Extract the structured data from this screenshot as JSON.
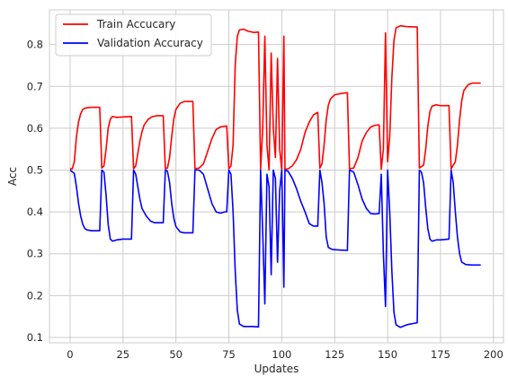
{
  "chart_data": {
    "type": "line",
    "xlabel": "Updates",
    "ylabel": "Acc",
    "xlim": [
      -9.75,
      204.75
    ],
    "ylim": [
      0.087,
      0.883
    ],
    "xticks": [
      0,
      25,
      50,
      75,
      100,
      125,
      150,
      175,
      200
    ],
    "yticks": [
      0.1,
      0.2,
      0.3,
      0.4,
      0.5,
      0.6,
      0.7,
      0.8
    ],
    "grid": true,
    "legend_position": "top-left",
    "series": [
      {
        "name": "Train Accucary",
        "color": "#ff0000",
        "points": [
          [
            0,
            0.503
          ],
          [
            1,
            0.503
          ],
          [
            2,
            0.52
          ],
          [
            3,
            0.58
          ],
          [
            4,
            0.615
          ],
          [
            5,
            0.635
          ],
          [
            6,
            0.645
          ],
          [
            7,
            0.648
          ],
          [
            8,
            0.649
          ],
          [
            10,
            0.65
          ],
          [
            14,
            0.65
          ],
          [
            15,
            0.505
          ],
          [
            16,
            0.51
          ],
          [
            17,
            0.55
          ],
          [
            18,
            0.6
          ],
          [
            19,
            0.622
          ],
          [
            20,
            0.628
          ],
          [
            22,
            0.626
          ],
          [
            25,
            0.627
          ],
          [
            29,
            0.628
          ],
          [
            30,
            0.503
          ],
          [
            31,
            0.51
          ],
          [
            32,
            0.54
          ],
          [
            33,
            0.57
          ],
          [
            34,
            0.592
          ],
          [
            35,
            0.608
          ],
          [
            37,
            0.622
          ],
          [
            39,
            0.628
          ],
          [
            41,
            0.63
          ],
          [
            44,
            0.63
          ],
          [
            45,
            0.503
          ],
          [
            46,
            0.505
          ],
          [
            47,
            0.53
          ],
          [
            48,
            0.58
          ],
          [
            49,
            0.622
          ],
          [
            50,
            0.645
          ],
          [
            52,
            0.66
          ],
          [
            54,
            0.664
          ],
          [
            58,
            0.664
          ],
          [
            59,
            0.503
          ],
          [
            61,
            0.505
          ],
          [
            63,
            0.515
          ],
          [
            65,
            0.545
          ],
          [
            67,
            0.575
          ],
          [
            69,
            0.597
          ],
          [
            71,
            0.603
          ],
          [
            73,
            0.605
          ],
          [
            74,
            0.605
          ],
          [
            75,
            0.503
          ],
          [
            76,
            0.51
          ],
          [
            77,
            0.56
          ],
          [
            78,
            0.75
          ],
          [
            79,
            0.82
          ],
          [
            80,
            0.835
          ],
          [
            82,
            0.837
          ],
          [
            84,
            0.832
          ],
          [
            87,
            0.829
          ],
          [
            89,
            0.83
          ],
          [
            90,
            0.502
          ],
          [
            91,
            0.6
          ],
          [
            92,
            0.82
          ],
          [
            93,
            0.56
          ],
          [
            94,
            0.5
          ],
          [
            95,
            0.78
          ],
          [
            96,
            0.6
          ],
          [
            97,
            0.53
          ],
          [
            98,
            0.767
          ],
          [
            99,
            0.55
          ],
          [
            100,
            0.5
          ],
          [
            101,
            0.82
          ],
          [
            101.5,
            0.502
          ],
          [
            103,
            0.503
          ],
          [
            105,
            0.51
          ],
          [
            107,
            0.525
          ],
          [
            109,
            0.55
          ],
          [
            111,
            0.59
          ],
          [
            113,
            0.615
          ],
          [
            115,
            0.632
          ],
          [
            117,
            0.638
          ],
          [
            118,
            0.505
          ],
          [
            119,
            0.515
          ],
          [
            120,
            0.56
          ],
          [
            121,
            0.62
          ],
          [
            122,
            0.655
          ],
          [
            123,
            0.67
          ],
          [
            125,
            0.68
          ],
          [
            128,
            0.683
          ],
          [
            131,
            0.685
          ],
          [
            132,
            0.503
          ],
          [
            134,
            0.505
          ],
          [
            136,
            0.53
          ],
          [
            138,
            0.57
          ],
          [
            140,
            0.59
          ],
          [
            142,
            0.603
          ],
          [
            144,
            0.607
          ],
          [
            146,
            0.608
          ],
          [
            147,
            0.502
          ],
          [
            148,
            0.55
          ],
          [
            149,
            0.828
          ],
          [
            150,
            0.52
          ],
          [
            151,
            0.58
          ],
          [
            152,
            0.72
          ],
          [
            153,
            0.81
          ],
          [
            154,
            0.84
          ],
          [
            156,
            0.845
          ],
          [
            159,
            0.843
          ],
          [
            164,
            0.842
          ],
          [
            165,
            0.505
          ],
          [
            167,
            0.512
          ],
          [
            168,
            0.55
          ],
          [
            169,
            0.605
          ],
          [
            170,
            0.64
          ],
          [
            171,
            0.653
          ],
          [
            173,
            0.656
          ],
          [
            175,
            0.654
          ],
          [
            179,
            0.654
          ],
          [
            180,
            0.503
          ],
          [
            182,
            0.52
          ],
          [
            183,
            0.56
          ],
          [
            184,
            0.62
          ],
          [
            185,
            0.665
          ],
          [
            186,
            0.69
          ],
          [
            188,
            0.704
          ],
          [
            190,
            0.708
          ],
          [
            194,
            0.708
          ]
        ]
      },
      {
        "name": "Validation Accuracy",
        "color": "#0000ff",
        "points": [
          [
            0,
            0.5
          ],
          [
            2,
            0.492
          ],
          [
            3,
            0.46
          ],
          [
            4,
            0.42
          ],
          [
            5,
            0.39
          ],
          [
            6,
            0.37
          ],
          [
            7,
            0.36
          ],
          [
            8,
            0.357
          ],
          [
            10,
            0.355
          ],
          [
            14,
            0.355
          ],
          [
            15,
            0.5
          ],
          [
            16,
            0.495
          ],
          [
            17,
            0.44
          ],
          [
            18,
            0.37
          ],
          [
            19,
            0.335
          ],
          [
            20,
            0.33
          ],
          [
            22,
            0.333
          ],
          [
            25,
            0.335
          ],
          [
            29,
            0.335
          ],
          [
            30,
            0.5
          ],
          [
            31,
            0.49
          ],
          [
            32,
            0.46
          ],
          [
            33,
            0.43
          ],
          [
            34,
            0.408
          ],
          [
            36,
            0.39
          ],
          [
            38,
            0.378
          ],
          [
            40,
            0.374
          ],
          [
            44,
            0.374
          ],
          [
            45,
            0.5
          ],
          [
            46,
            0.497
          ],
          [
            47,
            0.47
          ],
          [
            48,
            0.42
          ],
          [
            49,
            0.385
          ],
          [
            50,
            0.365
          ],
          [
            52,
            0.352
          ],
          [
            54,
            0.35
          ],
          [
            58,
            0.35
          ],
          [
            59,
            0.5
          ],
          [
            61,
            0.5
          ],
          [
            63,
            0.49
          ],
          [
            65,
            0.455
          ],
          [
            67,
            0.42
          ],
          [
            69,
            0.4
          ],
          [
            71,
            0.397
          ],
          [
            73,
            0.4
          ],
          [
            74,
            0.4
          ],
          [
            75,
            0.5
          ],
          [
            76,
            0.49
          ],
          [
            77,
            0.4
          ],
          [
            78,
            0.26
          ],
          [
            79,
            0.165
          ],
          [
            80,
            0.132
          ],
          [
            82,
            0.126
          ],
          [
            86,
            0.126
          ],
          [
            89,
            0.125
          ],
          [
            90,
            0.5
          ],
          [
            91,
            0.35
          ],
          [
            92,
            0.18
          ],
          [
            93,
            0.49
          ],
          [
            94,
            0.46
          ],
          [
            95,
            0.25
          ],
          [
            96,
            0.5
          ],
          [
            97,
            0.48
          ],
          [
            98,
            0.28
          ],
          [
            99,
            0.45
          ],
          [
            100,
            0.5
          ],
          [
            101,
            0.22
          ],
          [
            101.5,
            0.5
          ],
          [
            103,
            0.497
          ],
          [
            105,
            0.48
          ],
          [
            107,
            0.455
          ],
          [
            109,
            0.425
          ],
          [
            111,
            0.4
          ],
          [
            113,
            0.372
          ],
          [
            115,
            0.366
          ],
          [
            117,
            0.366
          ],
          [
            118,
            0.5
          ],
          [
            119,
            0.47
          ],
          [
            120,
            0.42
          ],
          [
            121,
            0.34
          ],
          [
            122,
            0.315
          ],
          [
            124,
            0.31
          ],
          [
            127,
            0.309
          ],
          [
            131,
            0.308
          ],
          [
            132,
            0.5
          ],
          [
            134,
            0.495
          ],
          [
            136,
            0.465
          ],
          [
            138,
            0.43
          ],
          [
            140,
            0.408
          ],
          [
            142,
            0.396
          ],
          [
            144,
            0.395
          ],
          [
            146,
            0.396
          ],
          [
            147,
            0.49
          ],
          [
            148,
            0.3
          ],
          [
            149,
            0.174
          ],
          [
            150,
            0.5
          ],
          [
            151,
            0.4
          ],
          [
            152,
            0.26
          ],
          [
            153,
            0.16
          ],
          [
            154,
            0.13
          ],
          [
            156,
            0.124
          ],
          [
            159,
            0.13
          ],
          [
            164,
            0.135
          ],
          [
            165,
            0.5
          ],
          [
            166,
            0.495
          ],
          [
            167,
            0.47
          ],
          [
            168,
            0.41
          ],
          [
            169,
            0.36
          ],
          [
            170,
            0.335
          ],
          [
            171,
            0.33
          ],
          [
            173,
            0.333
          ],
          [
            175,
            0.333
          ],
          [
            179,
            0.335
          ],
          [
            180,
            0.5
          ],
          [
            181,
            0.47
          ],
          [
            182,
            0.4
          ],
          [
            183,
            0.34
          ],
          [
            184,
            0.3
          ],
          [
            185,
            0.28
          ],
          [
            187,
            0.274
          ],
          [
            190,
            0.273
          ],
          [
            194,
            0.273
          ]
        ]
      }
    ]
  }
}
